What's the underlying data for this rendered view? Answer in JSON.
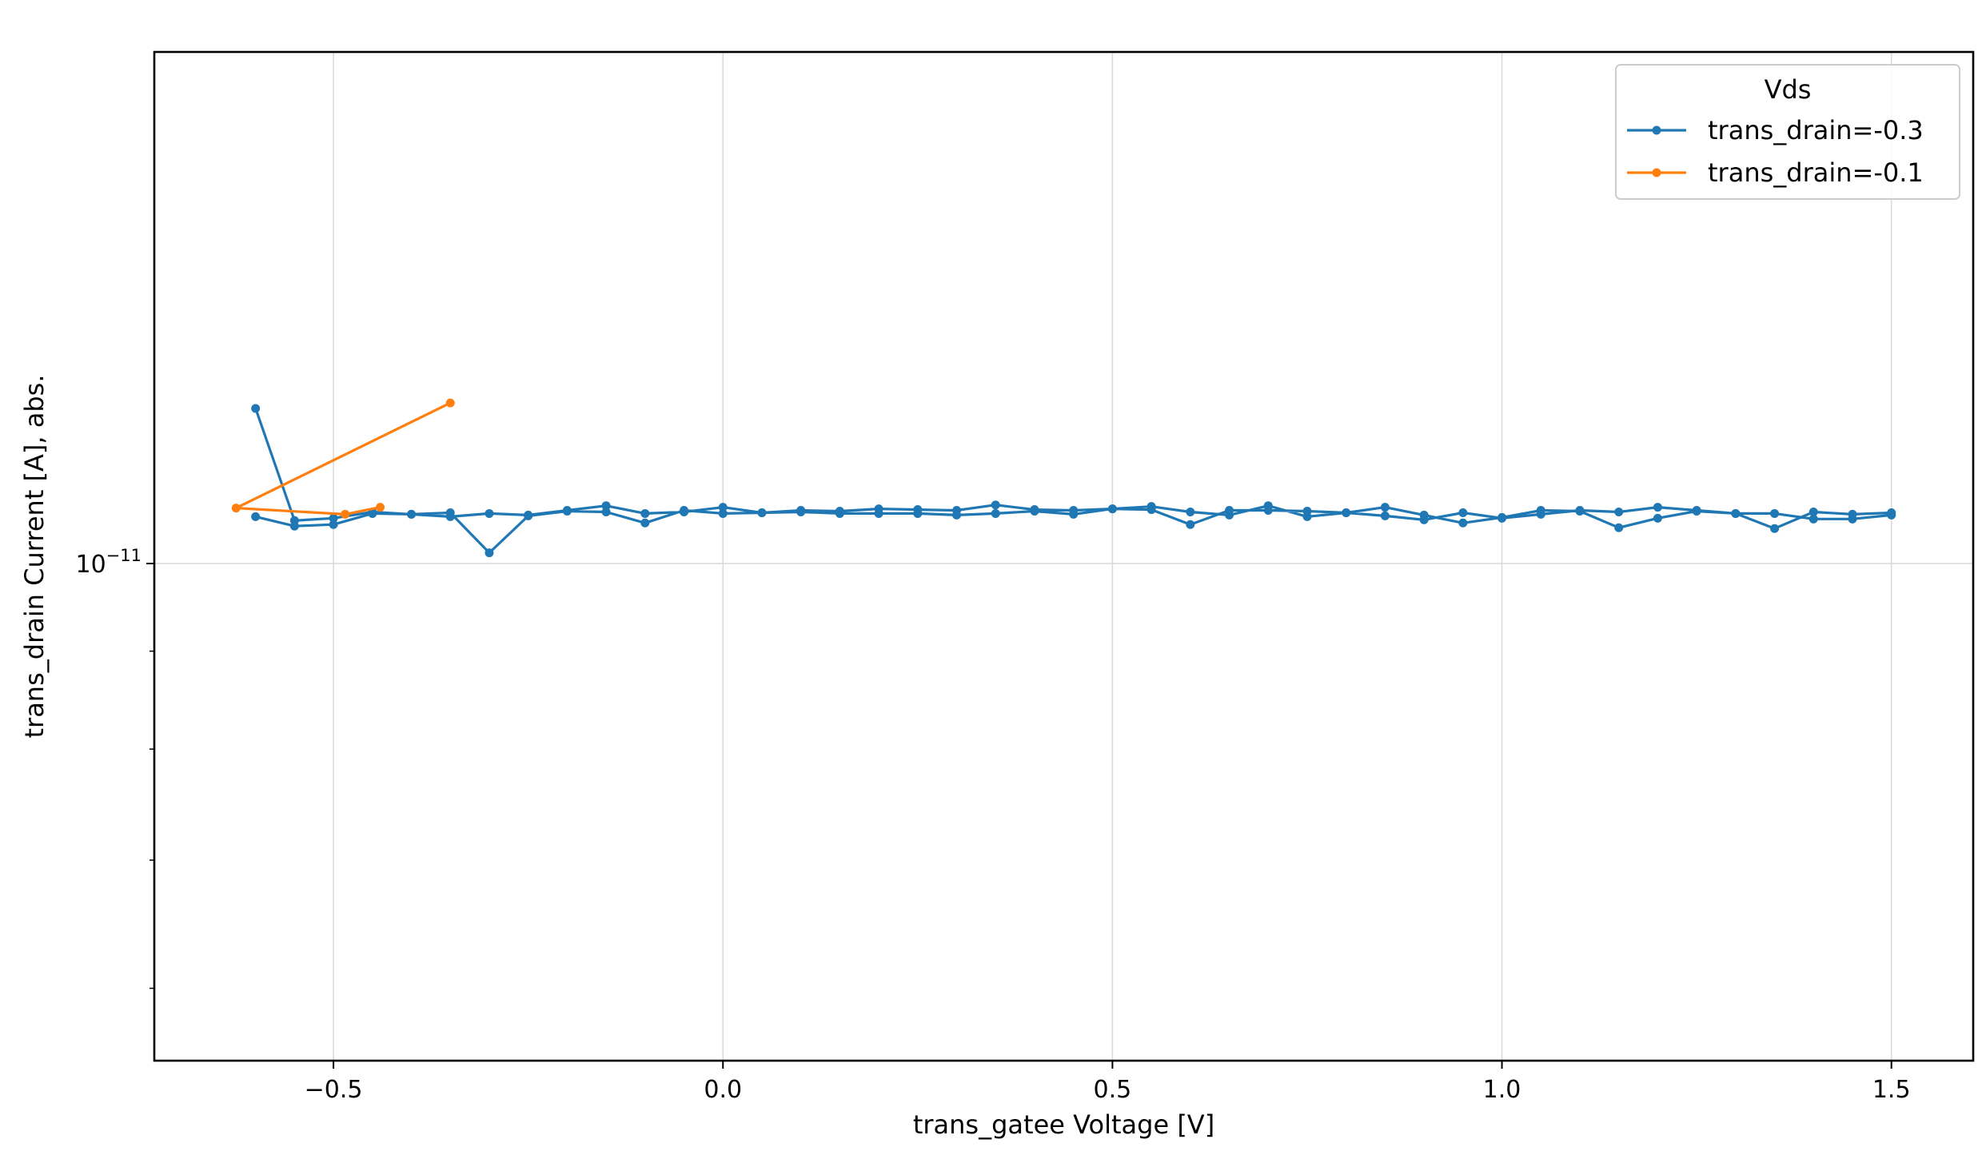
{
  "chart_data": {
    "type": "line",
    "title": "",
    "xlabel": "trans_gatee Voltage [V]",
    "ylabel": "trans_drain Current [A], abs.",
    "xlim": [
      -0.73,
      1.605
    ],
    "ylim": [
      5.5e-12,
      1.85e-11
    ],
    "y_scale": "log",
    "grid": true,
    "x_ticks": [
      {
        "value": -0.5,
        "label": "−0.5"
      },
      {
        "value": 0.0,
        "label": "0.0"
      },
      {
        "value": 0.5,
        "label": "0.5"
      },
      {
        "value": 1.0,
        "label": "1.0"
      },
      {
        "value": 1.5,
        "label": "1.5"
      }
    ],
    "y_major_tick": {
      "value": 1e-11,
      "base": "10",
      "exponent": "−11"
    },
    "y_minor_ticks": [
      6e-12,
      7e-12,
      8e-12,
      9e-12,
      2e-11
    ],
    "legend": {
      "title": "Vds",
      "placement": "top-right",
      "entries": [
        "trans_drain=-0.3",
        "trans_drain=-0.1"
      ]
    },
    "series": [
      {
        "name": "trans_drain=-0.3",
        "color": "#1f77b4",
        "x": [
          -0.6,
          -0.55,
          -0.5,
          -0.45,
          -0.4,
          -0.35,
          -0.3,
          -0.25,
          -0.2,
          -0.15,
          -0.1,
          -0.05,
          0.0,
          0.05,
          0.1,
          0.15,
          0.2,
          0.25,
          0.3,
          0.35,
          0.4,
          0.45,
          0.5,
          0.55,
          0.6,
          0.65,
          0.7,
          0.75,
          0.8,
          0.85,
          0.9,
          0.95,
          1.0,
          1.05,
          1.1,
          1.15,
          1.2,
          1.25,
          1.3,
          1.35,
          1.4,
          1.45,
          1.5,
          1.5,
          1.45,
          1.4,
          1.35,
          1.3,
          1.25,
          1.2,
          1.15,
          1.1,
          1.05,
          1.0,
          0.95,
          0.9,
          0.85,
          0.8,
          0.75,
          0.7,
          0.65,
          0.6,
          0.55,
          0.5,
          0.45,
          0.4,
          0.35,
          0.3,
          0.25,
          0.2,
          0.15,
          0.1,
          0.05,
          0.0,
          -0.05,
          -0.1,
          -0.15,
          -0.2,
          -0.25,
          -0.3,
          -0.35,
          -0.4,
          -0.45,
          -0.5,
          -0.55,
          -0.6
        ],
        "y": [
          1.058e-11,
          1.046e-11,
          1.048e-11,
          1.062e-11,
          1.061e-11,
          1.058e-11,
          1.062e-11,
          1.06e-11,
          1.066e-11,
          1.072e-11,
          1.062e-11,
          1.064e-11,
          1.07e-11,
          1.063e-11,
          1.066e-11,
          1.065e-11,
          1.068e-11,
          1.067e-11,
          1.066e-11,
          1.073e-11,
          1.067e-11,
          1.066e-11,
          1.068e-11,
          1.071e-11,
          1.064e-11,
          1.06e-11,
          1.072e-11,
          1.058e-11,
          1.063e-11,
          1.07e-11,
          1.06e-11,
          1.05e-11,
          1.057e-11,
          1.066e-11,
          1.065e-11,
          1.044e-11,
          1.056e-11,
          1.065e-11,
          1.062e-11,
          1.062e-11,
          1.055e-11,
          1.055e-11,
          1.06e-11,
          1.063e-11,
          1.061e-11,
          1.064e-11,
          1.043e-11,
          1.062e-11,
          1.066e-11,
          1.07e-11,
          1.064e-11,
          1.066e-11,
          1.061e-11,
          1.056e-11,
          1.063e-11,
          1.054e-11,
          1.059e-11,
          1.063e-11,
          1.065e-11,
          1.066e-11,
          1.066e-11,
          1.048e-11,
          1.067e-11,
          1.068e-11,
          1.061e-11,
          1.065e-11,
          1.062e-11,
          1.06e-11,
          1.062e-11,
          1.062e-11,
          1.062e-11,
          1.064e-11,
          1.063e-11,
          1.062e-11,
          1.066e-11,
          1.05e-11,
          1.064e-11,
          1.065e-11,
          1.059e-11,
          1.013e-11,
          1.063e-11,
          1.061e-11,
          1.064e-11,
          1.056e-11,
          1.053e-11,
          1.205e-11
        ]
      },
      {
        "name": "trans_drain=-0.1",
        "color": "#ff7f0e",
        "x": [
          -0.35,
          -0.625,
          -0.485,
          -0.44
        ],
        "y": [
          1.213e-11,
          1.069e-11,
          1.061e-11,
          1.07e-11
        ]
      }
    ]
  }
}
